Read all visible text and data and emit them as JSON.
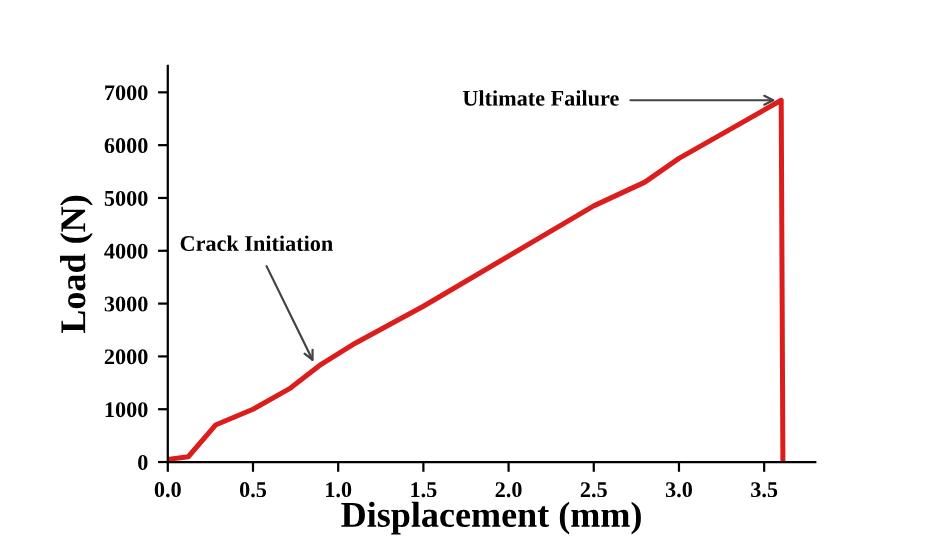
{
  "chart_data": {
    "type": "line",
    "xlabel": "Displacement (mm)",
    "ylabel": "Load (N)",
    "x": [
      0.0,
      0.12,
      0.28,
      0.5,
      0.72,
      0.9,
      1.1,
      1.5,
      2.0,
      2.5,
      2.8,
      3.0,
      3.3,
      3.6,
      3.61
    ],
    "series": [
      {
        "color": "#dd1c1c",
        "values": [
          50,
          100,
          700,
          1000,
          1400,
          1850,
          2250,
          2950,
          3900,
          4850,
          5300,
          5750,
          6300,
          6850,
          0
        ]
      }
    ],
    "xlim": [
      0,
      3.8
    ],
    "ylim": [
      0,
      7500
    ],
    "xticks": [
      {
        "value": 0,
        "label": "0.0"
      },
      0.5,
      {
        "value": 1,
        "label": "1.0"
      },
      1.5,
      {
        "value": 2,
        "label": "2.0"
      },
      2.5,
      {
        "value": 3,
        "label": "3.0"
      },
      3.5
    ],
    "yticks": [
      0,
      1000,
      2000,
      3000,
      4000,
      5000,
      6000,
      7000
    ],
    "annotations": [
      {
        "text": "Crack Initiation",
        "x": 0.87,
        "y": 1800
      },
      {
        "text": "Ultimate Failure",
        "x": 3.6,
        "y": 6850
      }
    ],
    "grid": false,
    "legend": false,
    "marker": "none",
    "line_style": "solid"
  }
}
